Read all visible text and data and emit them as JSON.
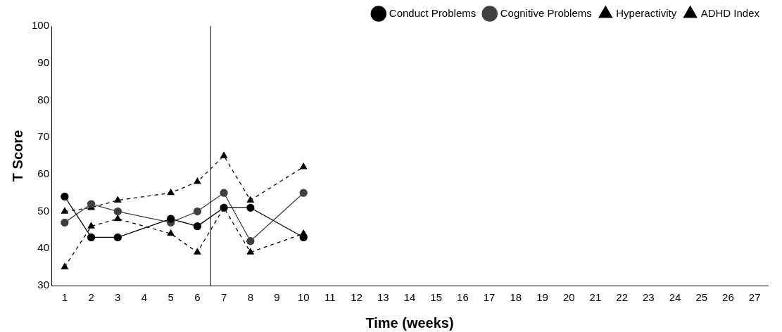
{
  "chart_data": {
    "type": "line",
    "xlabel": "Time (weeks)",
    "ylabel": "T Score",
    "x": [
      1,
      2,
      3,
      5,
      6,
      7,
      8,
      10
    ],
    "xlim": [
      0.5,
      27.5
    ],
    "xticks": [
      1,
      2,
      3,
      4,
      5,
      6,
      7,
      8,
      9,
      10,
      11,
      12,
      13,
      14,
      15,
      16,
      17,
      18,
      19,
      20,
      21,
      22,
      23,
      24,
      25,
      26,
      27
    ],
    "ylim": [
      30,
      100
    ],
    "yticks": [
      30,
      40,
      50,
      60,
      70,
      80,
      90,
      100
    ],
    "series": [
      {
        "name": "Conduct Problems",
        "color": "#000000",
        "marker": "circle",
        "line_style": "solid",
        "values": [
          54,
          43,
          43,
          48,
          46,
          51,
          51,
          43
        ]
      },
      {
        "name": "Cognitive Problems",
        "color": "#404040",
        "marker": "circle",
        "line_style": "solid",
        "values": [
          47,
          52,
          50,
          47,
          50,
          55,
          42,
          55
        ]
      },
      {
        "name": "Hyperactivity",
        "color": "#000000",
        "marker": "triangle",
        "line_style": "dashed",
        "values": [
          35,
          46,
          48,
          44,
          39,
          51,
          39,
          44
        ]
      },
      {
        "name": "ADHD Index",
        "color": "#000000",
        "marker": "triangle",
        "line_style": "dashed",
        "values": [
          50,
          51,
          53,
          55,
          58,
          65,
          53,
          62
        ]
      }
    ],
    "ref_lines": [
      {
        "axis": "x",
        "value": 6.5,
        "color": "#000000"
      }
    ],
    "legend": "top",
    "grid": false
  }
}
